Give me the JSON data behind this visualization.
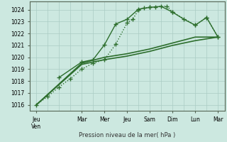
{
  "background_color": "#cce8e0",
  "grid_color": "#aaccc4",
  "line_color": "#2d6e2d",
  "ylabel_text": "Pression niveau de la mer( hPa )",
  "ylim": [
    1015.5,
    1024.7
  ],
  "yticks": [
    1016,
    1017,
    1018,
    1019,
    1020,
    1021,
    1022,
    1023,
    1024
  ],
  "x_labels": [
    "Jeu\nVen",
    "Mar",
    "Mer",
    "Jeu",
    "Sam",
    "Dim",
    "Lun",
    "Mar"
  ],
  "x_positions": [
    0,
    2,
    3,
    4,
    5,
    6,
    7,
    8
  ],
  "series": [
    {
      "x": [
        0,
        0.5,
        1.0,
        1.5,
        2.0,
        2.5,
        3.0,
        3.5,
        4.0,
        4.25,
        4.5,
        4.75,
        5.0,
        5.25,
        5.75,
        6.0,
        7.0,
        7.5,
        8.0
      ],
      "y": [
        1016.0,
        1016.7,
        1017.5,
        1018.2,
        1019.0,
        1019.5,
        1019.8,
        1021.1,
        1022.9,
        1023.2,
        1024.0,
        1024.15,
        1024.2,
        1024.25,
        1024.3,
        1023.8,
        1022.7,
        1023.35,
        1021.7
      ],
      "linestyle": "dotted",
      "linewidth": 1.0
    },
    {
      "x": [
        0,
        2,
        3,
        4,
        5,
        6,
        7,
        8
      ],
      "y": [
        1016.0,
        1019.4,
        1019.8,
        1020.1,
        1020.5,
        1021.0,
        1021.4,
        1021.7
      ],
      "linestyle": "solid",
      "linewidth": 1.2
    },
    {
      "x": [
        0,
        2,
        3,
        4,
        5,
        6,
        7,
        8
      ],
      "y": [
        1016.0,
        1019.5,
        1020.0,
        1020.3,
        1020.7,
        1021.2,
        1021.7,
        1021.7
      ],
      "linestyle": "solid",
      "linewidth": 1.2
    },
    {
      "x": [
        1.0,
        2.0,
        2.5,
        3.0,
        3.5,
        4.0,
        4.5,
        5.0,
        5.5,
        6.0,
        6.5,
        7.0,
        7.5,
        8.0
      ],
      "y": [
        1018.3,
        1019.6,
        1019.8,
        1021.05,
        1022.8,
        1023.2,
        1024.05,
        1024.2,
        1024.28,
        1023.8,
        1023.2,
        1022.7,
        1023.35,
        1021.7
      ],
      "linestyle": "solid",
      "linewidth": 1.0
    }
  ]
}
